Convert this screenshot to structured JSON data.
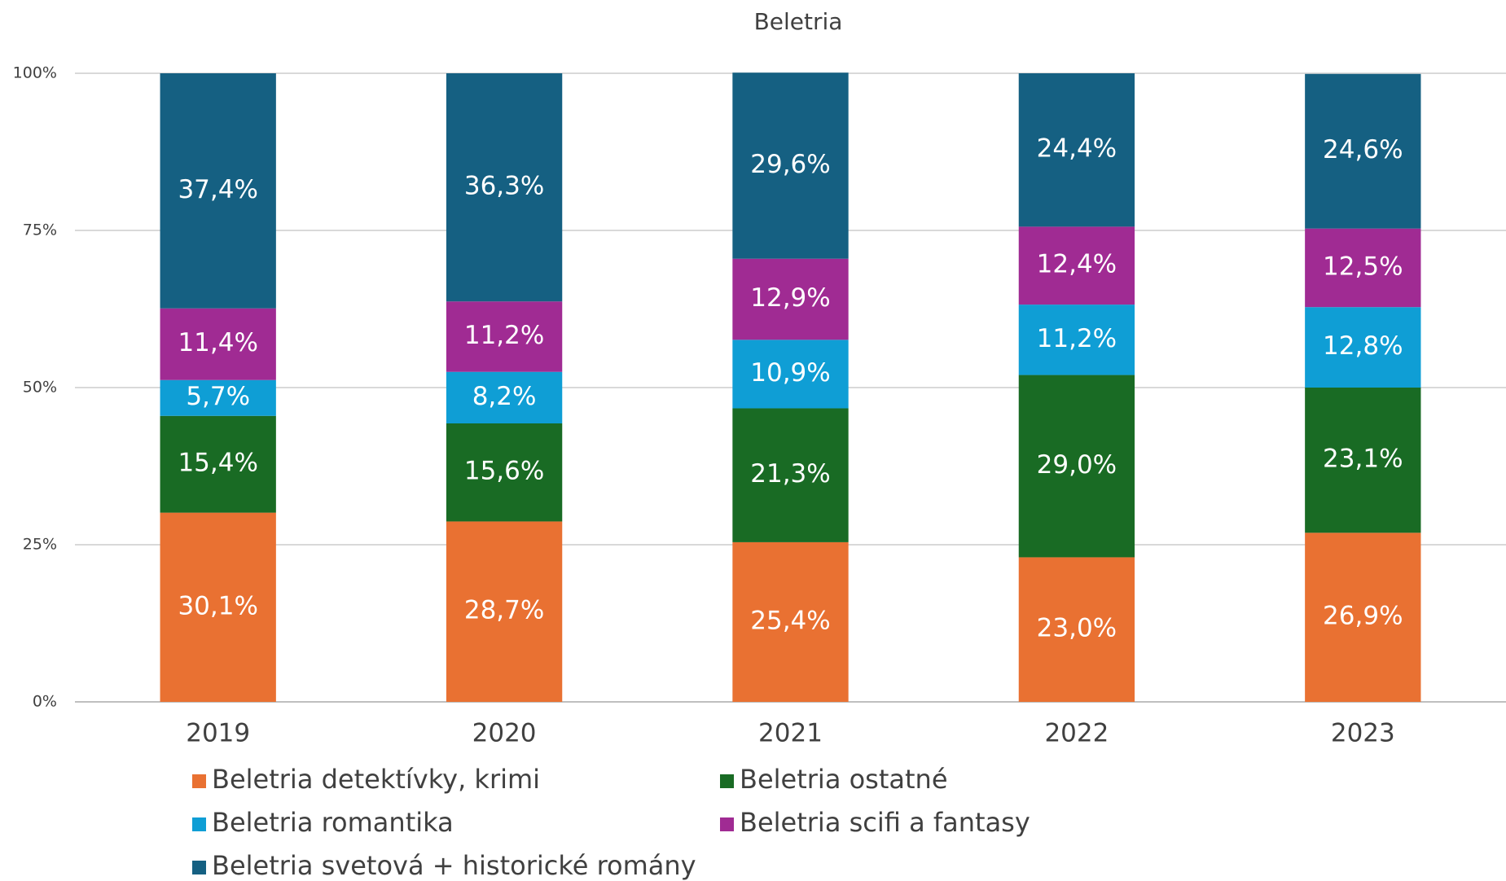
{
  "chart_data": {
    "type": "stacked_bar",
    "title": "Beletria",
    "categories": [
      "2019",
      "2020",
      "2021",
      "2022",
      "2023"
    ],
    "series": [
      {
        "name": "Beletria detektívky, krimi",
        "color": "#E97132",
        "values": [
          30.1,
          28.7,
          25.4,
          23.0,
          26.9
        ],
        "value_labels": [
          "30,1%",
          "28,7%",
          "25,4%",
          "23,0%",
          "26,9%"
        ]
      },
      {
        "name": "Beletria ostatné",
        "color": "#196B24",
        "values": [
          15.4,
          15.6,
          21.3,
          29.0,
          23.1
        ],
        "value_labels": [
          "15,4%",
          "15,6%",
          "21,3%",
          "29,0%",
          "23,1%"
        ]
      },
      {
        "name": "Beletria romantika",
        "color": "#0F9ED5",
        "values": [
          5.7,
          8.2,
          10.9,
          11.2,
          12.8
        ],
        "value_labels": [
          "5,7%",
          "8,2%",
          "10,9%",
          "11,2%",
          "12,8%"
        ]
      },
      {
        "name": "Beletria scifi a fantasy",
        "color": "#A02B93",
        "values": [
          11.4,
          11.2,
          12.9,
          12.4,
          12.5
        ],
        "value_labels": [
          "11,4%",
          "11,2%",
          "12,9%",
          "12,4%",
          "12,5%"
        ]
      },
      {
        "name": "Beletria svetová + historické romány",
        "color": "#156082",
        "values": [
          37.4,
          36.3,
          29.6,
          24.4,
          24.6
        ],
        "value_labels": [
          "37,4%",
          "36,3%",
          "29,6%",
          "24,4%",
          "24,6%"
        ]
      }
    ],
    "ylim": [
      0,
      100
    ],
    "yticks": [
      {
        "value": 0,
        "label": "0%"
      },
      {
        "value": 25,
        "label": "25%"
      },
      {
        "value": 50,
        "label": "50%"
      },
      {
        "value": 75,
        "label": "75%"
      },
      {
        "value": 100,
        "label": "100%"
      }
    ],
    "grid": true,
    "legend": "bottom"
  }
}
